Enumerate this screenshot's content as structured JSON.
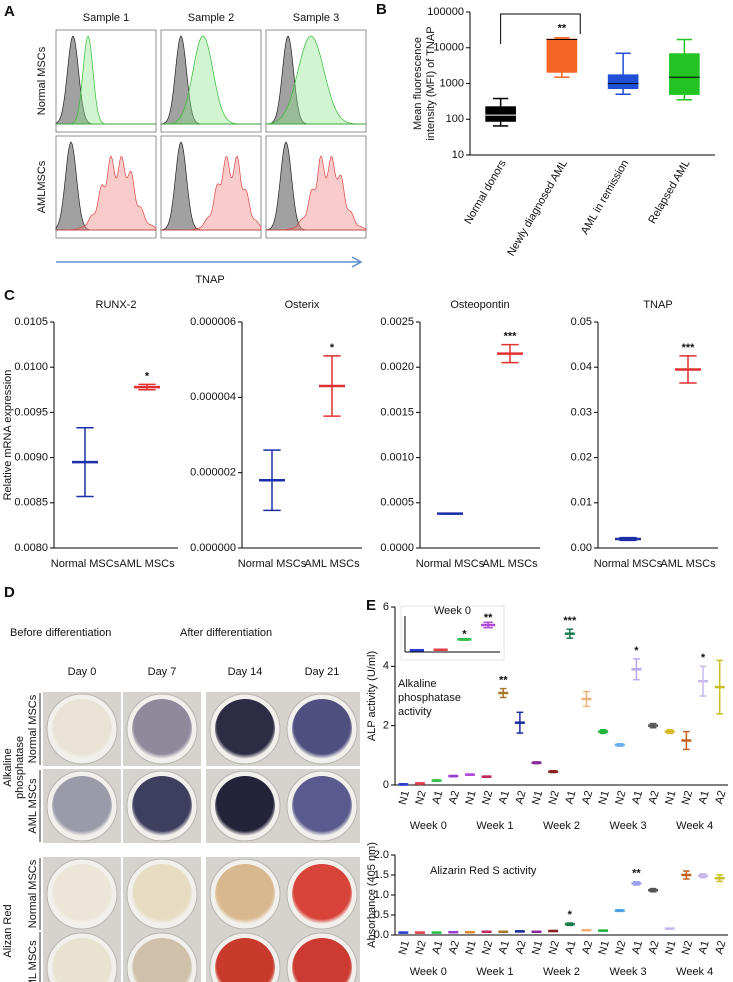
{
  "labels": [
    "A",
    "B",
    "C",
    "D",
    "E"
  ],
  "panel_a": {
    "columns": [
      "Sample 1",
      "Sample 2",
      "Sample 3"
    ],
    "rows": [
      "Normal MSCs",
      "AMLMSCs"
    ],
    "xlabel": "TNAP"
  },
  "panel_d": {
    "phases": [
      "Before differentiation",
      "After differentiation"
    ],
    "days": [
      "Day 0",
      "Day 7",
      "Day 14",
      "Day 21"
    ],
    "stains": [
      {
        "name": [
          "Alkaline",
          "phosphatase"
        ],
        "rows": [
          "Normal MSCs",
          "AML MSCs"
        ]
      },
      {
        "name": [
          "Alizan Red"
        ],
        "rows": [
          "Normal MSCs",
          "AML MSCs"
        ]
      }
    ]
  },
  "chart_data": [
    {
      "type": "box",
      "log_scale": true,
      "ylabel": [
        "Mean fluorescence",
        "intensity (MFI) of TNAP"
      ],
      "categories": [
        "Normal donors",
        "Newly diagnosed AML",
        "AML in remission",
        "Relapsed AML"
      ],
      "colors": [
        "#000000",
        "#f26522",
        "#1f4fd6",
        "#22c322"
      ],
      "min": [
        65,
        1500,
        500,
        350
      ],
      "q1": [
        85,
        2000,
        700,
        480
      ],
      "median": [
        130,
        17000,
        1000,
        1500
      ],
      "q3": [
        230,
        18000,
        1800,
        7000
      ],
      "max": [
        380,
        19000,
        7000,
        17000
      ],
      "significance": [
        null,
        "**",
        null,
        null
      ],
      "ylim": [
        10,
        100000
      ],
      "yticks": [
        10,
        100,
        1000,
        10000,
        100000
      ]
    },
    {
      "type": "errorbar",
      "title": "RUNX-2",
      "ylabel": "Relative mRNA expression",
      "categories": [
        "Normal MSCs",
        "AML MSCs"
      ],
      "colors": [
        "#1b2fa8",
        "#e0302f"
      ],
      "values": [
        0.00895,
        0.00978
      ],
      "errors": [
        0.00038,
        3e-05
      ],
      "significance": [
        null,
        "*"
      ],
      "ylim": [
        0.008,
        0.0105
      ],
      "yticks": [
        {
          "value": 0.008,
          "label": "0.0080"
        },
        {
          "value": 0.0085,
          "label": "0.0085"
        },
        {
          "value": 0.009,
          "label": "0.0090"
        },
        {
          "value": 0.0095,
          "label": "0.0095"
        },
        {
          "value": 0.01,
          "label": "0.0100"
        },
        {
          "value": 0.0105,
          "label": "0.0105"
        }
      ]
    },
    {
      "type": "errorbar",
      "title": "Osterix",
      "categories": [
        "Normal MSCs",
        "AML MSCs"
      ],
      "colors": [
        "#1b2fa8",
        "#e0302f"
      ],
      "values": [
        1.8e-06,
        4.3e-06
      ],
      "errors": [
        8e-07,
        8e-07
      ],
      "significance": [
        null,
        "*"
      ],
      "ylim": [
        0,
        6e-06
      ],
      "yticks": [
        {
          "value": 0,
          "label": "0.000000"
        },
        {
          "value": 2e-06,
          "label": "0.000002"
        },
        {
          "value": 4e-06,
          "label": "0.000004"
        },
        {
          "value": 6e-06,
          "label": "0.000006"
        }
      ]
    },
    {
      "type": "errorbar",
      "title": "Osteopontin",
      "categories": [
        "Normal MSCs",
        "AML MSCs"
      ],
      "colors": [
        "#1b2fa8",
        "#e0302f"
      ],
      "values": [
        0.00038,
        0.00215
      ],
      "errors": [
        5e-06,
        0.0001
      ],
      "significance": [
        null,
        "***"
      ],
      "ylim": [
        0,
        0.0025
      ],
      "yticks": [
        {
          "value": 0,
          "label": "0.0000"
        },
        {
          "value": 0.0005,
          "label": "0.0005"
        },
        {
          "value": 0.001,
          "label": "0.0010"
        },
        {
          "value": 0.0015,
          "label": "0.0015"
        },
        {
          "value": 0.002,
          "label": "0.0020"
        },
        {
          "value": 0.0025,
          "label": "0.0025"
        }
      ]
    },
    {
      "type": "errorbar",
      "title": "TNAP",
      "categories": [
        "Normal MSCs",
        "AML MSCs"
      ],
      "colors": [
        "#1b2fa8",
        "#e0302f"
      ],
      "values": [
        0.002,
        0.0395
      ],
      "errors": [
        0.0003,
        0.003
      ],
      "significance": [
        null,
        "***"
      ],
      "ylim": [
        0,
        0.05
      ],
      "yticks": [
        {
          "value": 0,
          "label": "0.00"
        },
        {
          "value": 0.01,
          "label": "0.01"
        },
        {
          "value": 0.02,
          "label": "0.02"
        },
        {
          "value": 0.03,
          "label": "0.03"
        },
        {
          "value": 0.04,
          "label": "0.04"
        },
        {
          "value": 0.05,
          "label": "0.05"
        }
      ]
    },
    {
      "type": "errorbar",
      "ylabel": "ALP activity (U/ml)",
      "annotation": [
        "Alkaline",
        "phosphatase",
        "activity"
      ],
      "categories": [
        "N1",
        "N2",
        "A1",
        "A2",
        "N1",
        "N2",
        "A1",
        "A2",
        "N1",
        "N2",
        "A1",
        "A2",
        "N1",
        "N2",
        "A1",
        "A2",
        "N1",
        "N2",
        "A1",
        "A2"
      ],
      "groups": [
        "Week 0",
        "Week 1",
        "Week 2",
        "Week 3",
        "Week 4"
      ],
      "colors": [
        "#2a3bd0",
        "#e0404a",
        "#2fbf4a",
        "#9a3fd0",
        "#b04ad8",
        "#c02860",
        "#a5782a",
        "#1a2aa0",
        "#8a2a9a",
        "#8a1f1f",
        "#1a7a50",
        "#f0b07a",
        "#1fb53a",
        "#6ab0f0",
        "#b8a8f0",
        "#555555",
        "#d8b820",
        "#c0601a",
        "#c8b8f0",
        "#c8c020"
      ],
      "values": [
        0.02,
        0.05,
        0.15,
        0.3,
        0.35,
        0.28,
        3.1,
        2.1,
        0.75,
        0.45,
        5.1,
        2.9,
        1.8,
        1.35,
        3.9,
        2.0,
        1.8,
        1.5,
        3.5,
        3.3
      ],
      "errors": [
        0.02,
        0.02,
        0.02,
        0.02,
        0.02,
        0.02,
        0.15,
        0.35,
        0.03,
        0.03,
        0.15,
        0.25,
        0.06,
        0.04,
        0.35,
        0.07,
        0.06,
        0.3,
        0.5,
        0.9
      ],
      "significance": [
        null,
        null,
        null,
        null,
        null,
        null,
        "**",
        null,
        null,
        null,
        "***",
        null,
        null,
        null,
        "*",
        null,
        null,
        null,
        "*",
        null
      ],
      "ylim": [
        0,
        6
      ],
      "yticks": [
        0,
        2,
        4,
        6
      ]
    },
    {
      "type": "errorbar",
      "title": "Week 0",
      "colors": [
        "#2a3bd0",
        "#e0404a",
        "#2fbf4a",
        "#b04ad8"
      ],
      "values": [
        0.02,
        0.025,
        0.14,
        0.3
      ],
      "errors": [
        0.005,
        0.005,
        0.008,
        0.03
      ],
      "significance": [
        null,
        null,
        "*",
        "**"
      ],
      "ylim": [
        0,
        0.4
      ]
    },
    {
      "type": "errorbar",
      "ylabel": "Absorbance (405 nm)",
      "annotation": [
        "Alizarin Red S activity"
      ],
      "categories": [
        "N1",
        "N2",
        "A1",
        "A2",
        "N1",
        "N2",
        "A1",
        "A2",
        "N1",
        "N2",
        "A1",
        "A2",
        "N1",
        "N2",
        "A1",
        "A2",
        "N1",
        "N2",
        "A1",
        "A2"
      ],
      "groups": [
        "Week 0",
        "Week 1",
        "Week 2",
        "Week 3",
        "Week 4"
      ],
      "colors": [
        "#2a3bd0",
        "#e0404a",
        "#2fbf4a",
        "#9a3fd0",
        "#e08a30",
        "#c02860",
        "#a5782a",
        "#1a2aa0",
        "#8a2a9a",
        "#8a1f1f",
        "#1a7a50",
        "#f0b07a",
        "#1fb53a",
        "#4aa0e0",
        "#9aa0f0",
        "#555555",
        "#c8b8f0",
        "#c0601a",
        "#c8b8e8",
        "#c8c020"
      ],
      "values": [
        0.06,
        0.06,
        0.06,
        0.07,
        0.07,
        0.08,
        0.08,
        0.09,
        0.08,
        0.1,
        0.27,
        0.12,
        0.11,
        0.61,
        1.29,
        1.12,
        0.16,
        1.5,
        1.48,
        1.42
      ],
      "errors": [
        0.01,
        0.01,
        0.01,
        0.01,
        0.01,
        0.01,
        0.01,
        0.01,
        0.01,
        0.01,
        0.03,
        0.01,
        0.01,
        0.02,
        0.04,
        0.04,
        0.01,
        0.1,
        0.05,
        0.08
      ],
      "significance": [
        null,
        null,
        null,
        null,
        null,
        null,
        null,
        null,
        null,
        null,
        "*",
        null,
        null,
        null,
        "**",
        null,
        null,
        null,
        null,
        null
      ],
      "ylim": [
        0,
        2
      ],
      "yticks": [
        {
          "value": 0,
          "label": "0.0"
        },
        {
          "value": 0.5,
          "label": "0.5"
        },
        {
          "value": 1,
          "label": "1.0"
        },
        {
          "value": 1.5,
          "label": "1.5"
        },
        {
          "value": 2,
          "label": "2.0"
        }
      ]
    }
  ]
}
